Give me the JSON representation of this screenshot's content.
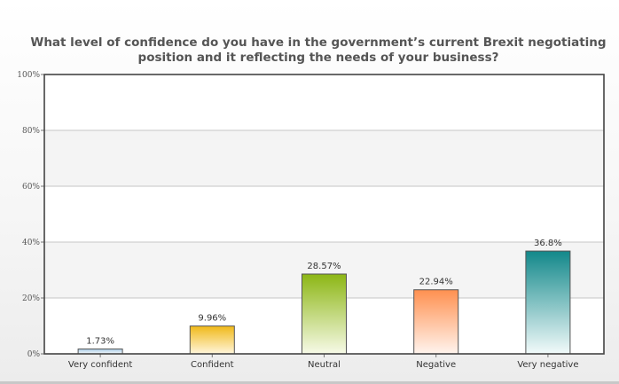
{
  "chart_data": {
    "type": "bar",
    "title": "What level of confidence do you have in the government’s current Brexit negotiating position and it reflecting the needs of your business?",
    "categories": [
      "Very confident",
      "Confident",
      "Neutral",
      "Negative",
      "Very negative"
    ],
    "values": [
      1.73,
      9.96,
      28.57,
      22.94,
      36.8
    ],
    "value_labels": [
      "1.73%",
      "9.96%",
      "28.57%",
      "22.94%",
      "36.8%"
    ],
    "ylim": [
      0,
      100
    ],
    "yticks": [
      0,
      20,
      40,
      60,
      80,
      100
    ],
    "ytick_labels": [
      "0%",
      "20%",
      "40%",
      "60%",
      "80%",
      "100%"
    ],
    "grid": true,
    "legend": "none",
    "bar_colors": [
      {
        "top": "#a8cbe6",
        "bottom": "#f6fafd"
      },
      {
        "top": "#f0b818",
        "bottom": "#fff6dc"
      },
      {
        "top": "#8cb614",
        "bottom": "#f7fae8"
      },
      {
        "top": "#ff9050",
        "bottom": "#fff4ee"
      },
      {
        "top": "#12888a",
        "bottom": "#f2fafa"
      }
    ]
  }
}
